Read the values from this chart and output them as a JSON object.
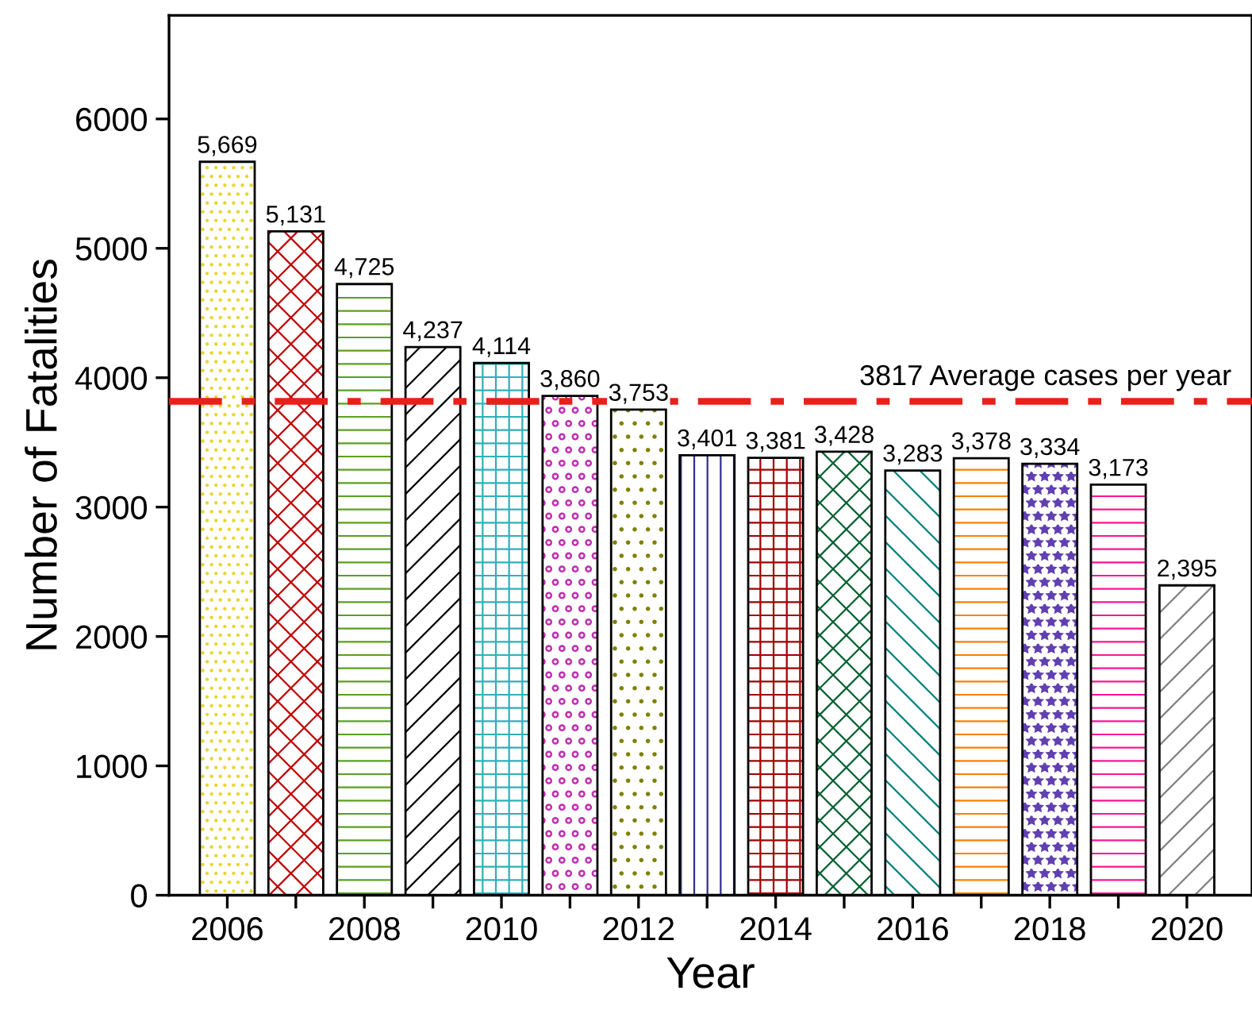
{
  "chart_data": {
    "type": "bar",
    "xlabel": "Year",
    "ylabel": "Number of Fatalities",
    "x": [
      2006,
      2007,
      2008,
      2009,
      2010,
      2011,
      2012,
      2013,
      2014,
      2015,
      2016,
      2017,
      2018,
      2019,
      2020
    ],
    "values": [
      5669,
      5131,
      4725,
      4237,
      4114,
      3860,
      3753,
      3401,
      3381,
      3428,
      3283,
      3378,
      3334,
      3173,
      2395
    ],
    "value_labels": [
      "5,669",
      "5,131",
      "4,725",
      "4,237",
      "4,114",
      "3,860",
      "3,753",
      "3,401",
      "3,381",
      "3,428",
      "3,283",
      "3,378",
      "3,334",
      "3,173",
      "2,395"
    ],
    "colors": [
      "#e8d630",
      "#c00000",
      "#5aa020",
      "#000000",
      "#30b0b8",
      "#c030b0",
      "#808000",
      "#303090",
      "#a00000",
      "#006030",
      "#008080",
      "#ff8000",
      "#6040b0",
      "#ff1493",
      "#808080"
    ],
    "xlim": [
      2005.15,
      2020.95
    ],
    "ylim": [
      0,
      6800
    ],
    "xticks": [
      2006,
      {
        "value": 2007,
        "label": null
      },
      2008,
      {
        "value": 2009,
        "label": null
      },
      2010,
      {
        "value": 2011,
        "label": null
      },
      2012,
      {
        "value": 2013,
        "label": null
      },
      2014,
      {
        "value": 2015,
        "label": null
      },
      2016,
      {
        "value": 2017,
        "label": null
      },
      2018,
      {
        "value": 2019,
        "label": null
      },
      2020
    ],
    "yticks": [
      0,
      1000,
      2000,
      3000,
      4000,
      5000,
      6000
    ],
    "ref_lines": [
      {
        "axis": "y",
        "value": 3817,
        "label": "3817 Average cases per year",
        "color": "#e8201a",
        "line_style": "dashdot"
      }
    ],
    "grid": false
  }
}
